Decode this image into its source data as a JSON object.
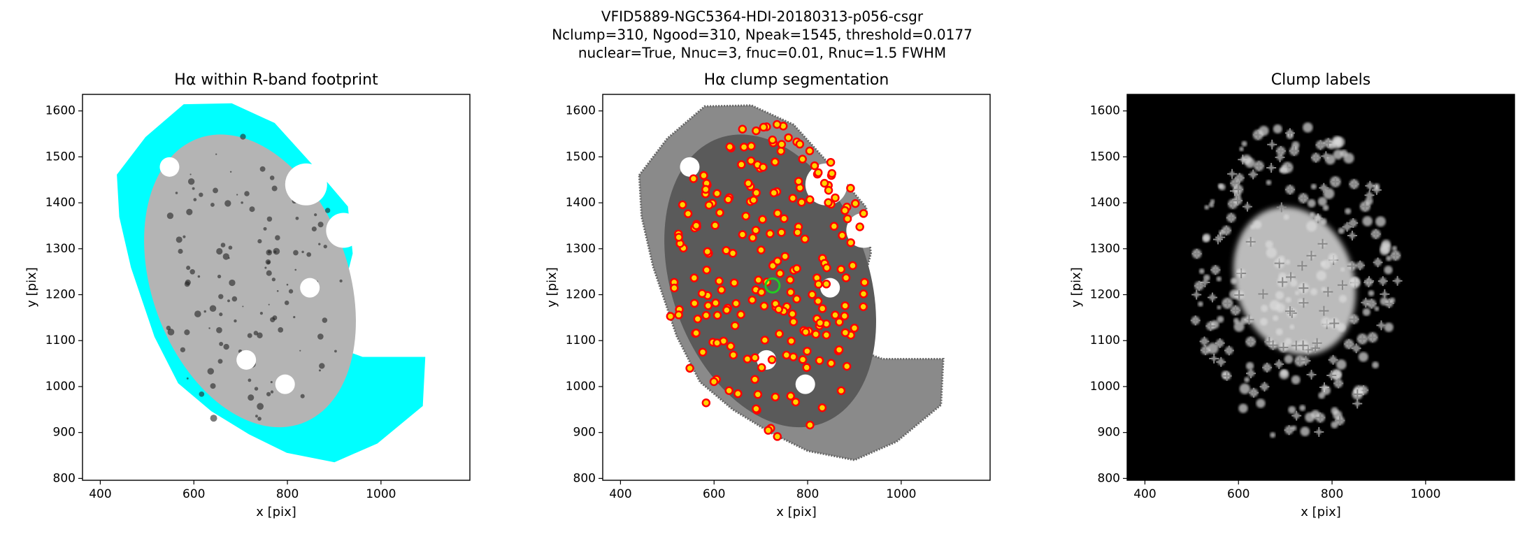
{
  "figure_title": [
    "VFID5889-NGC5364-HDI-20180313-p056-csgr",
    "Nclump=310, Ngood=310, Npeak=1545, threshold=0.0177",
    "nuclear=True, Nnuc=3, fnuc=0.01, Rnuc=1.5 FWHM"
  ],
  "chart_data": [
    {
      "type": "image",
      "style": "footprint",
      "title": "Hα within R-band footprint",
      "xlabel": "x [pix]",
      "ylabel": "y [pix]",
      "xlim": [
        362,
        1190
      ],
      "ylim": [
        796,
        1636
      ],
      "xticks": [
        400,
        600,
        800,
        1000
      ],
      "yticks": [
        800,
        900,
        1000,
        1100,
        1200,
        1300,
        1400,
        1500,
        1600
      ]
    },
    {
      "type": "image",
      "style": "segmentation",
      "title": "Hα clump segmentation",
      "xlabel": "x [pix]",
      "ylabel": "y [pix]",
      "xlim": [
        362,
        1190
      ],
      "ylim": [
        796,
        1636
      ],
      "xticks": [
        400,
        600,
        800,
        1000
      ],
      "yticks": [
        800,
        900,
        1000,
        1100,
        1200,
        1300,
        1400,
        1500,
        1600
      ]
    },
    {
      "type": "image",
      "style": "labels",
      "title": "Clump labels",
      "xlabel": "x [pix]",
      "ylabel": "y [pix]",
      "xlim": [
        362,
        1190
      ],
      "ylim": [
        796,
        1636
      ],
      "xticks": [
        400,
        600,
        800,
        1000
      ],
      "yticks": [
        800,
        900,
        1000,
        1100,
        1200,
        1300,
        1400,
        1500,
        1600
      ]
    }
  ]
}
